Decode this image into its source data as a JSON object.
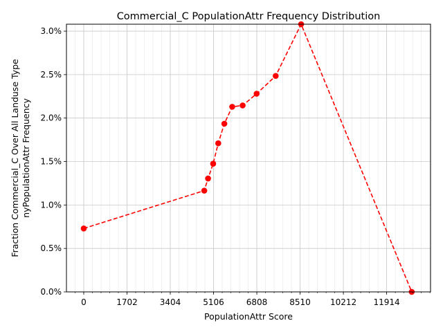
{
  "chart_data": {
    "type": "line",
    "title": "Commercial_C PopulationAttr Frequency Distribution",
    "xlabel": "PopulationAttr Score",
    "ylabel_lines": [
      "Fraction Commercial_C Over All Landuse Type",
      "nyPopulationAttr Frequency"
    ],
    "xlim": [
      -680,
      13640
    ],
    "ylim": [
      0,
      0.0308
    ],
    "x_ticks": [
      0,
      1702,
      3404,
      5106,
      6808,
      8510,
      10212,
      11914
    ],
    "x_tick_labels": [
      "0",
      "1702",
      "3404",
      "5106",
      "6808",
      "8510",
      "10212",
      "11914"
    ],
    "y_ticks": [
      0,
      0.005,
      0.01,
      0.015,
      0.02,
      0.025,
      0.03
    ],
    "y_tick_labels": [
      "0.0%",
      "0.5%",
      "1.0%",
      "1.5%",
      "2.0%",
      "2.5%",
      "3.0%"
    ],
    "grid": true,
    "series_color": "#ff0000",
    "line_style": "dashed",
    "marker": "circle",
    "points": [
      {
        "x": 0,
        "y": 0.0073
      },
      {
        "x": 4740,
        "y": 0.01165
      },
      {
        "x": 4890,
        "y": 0.01305
      },
      {
        "x": 5090,
        "y": 0.01475
      },
      {
        "x": 5290,
        "y": 0.0171
      },
      {
        "x": 5530,
        "y": 0.01935
      },
      {
        "x": 5840,
        "y": 0.0213
      },
      {
        "x": 6250,
        "y": 0.02145
      },
      {
        "x": 6800,
        "y": 0.0228
      },
      {
        "x": 7550,
        "y": 0.02485
      },
      {
        "x": 8550,
        "y": 0.0308
      },
      {
        "x": 12900,
        "y": 0.0
      }
    ]
  }
}
